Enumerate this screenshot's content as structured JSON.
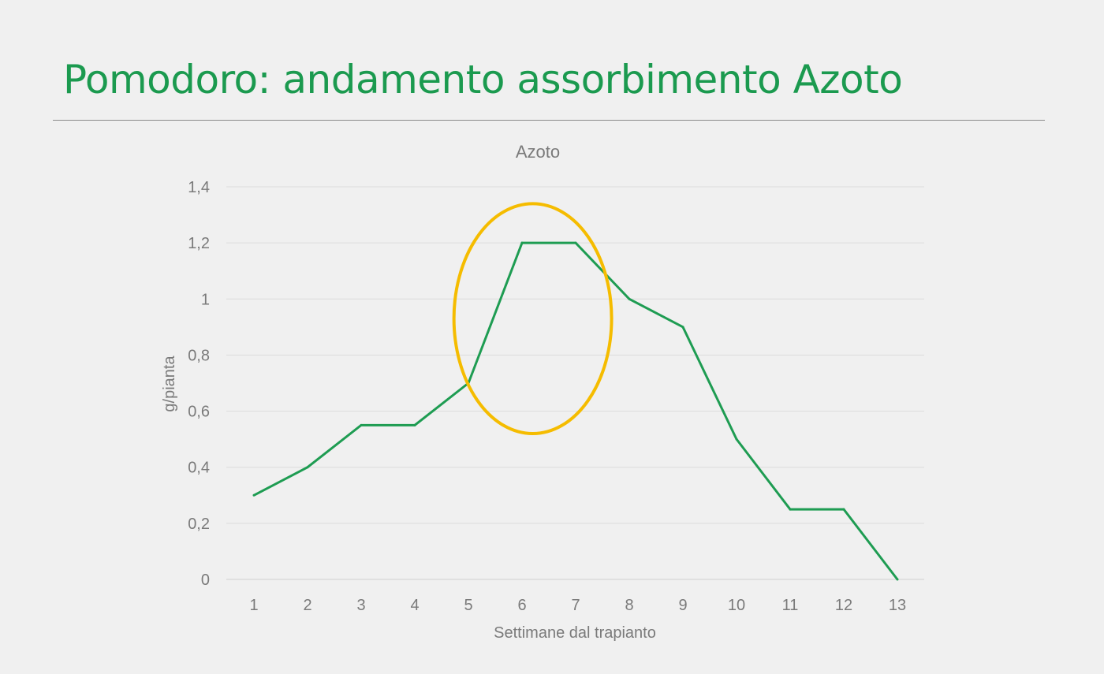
{
  "slide": {
    "title": "Pomodoro: andamento assorbimento Azoto"
  },
  "colors": {
    "title": "#1b9a4f",
    "line": "#1e9c52",
    "highlight": "#f5bc00",
    "grid": "#dcdcdc",
    "text": "#7a7a7a"
  },
  "chart_data": {
    "type": "line",
    "title": "Azoto",
    "xlabel": "Settimane dal trapianto",
    "ylabel": "g/pianta",
    "categories": [
      "1",
      "2",
      "3",
      "4",
      "5",
      "6",
      "7",
      "8",
      "9",
      "10",
      "11",
      "12",
      "13"
    ],
    "series": [
      {
        "values": [
          0.3,
          0.4,
          0.55,
          0.55,
          0.7,
          1.2,
          1.2,
          1.0,
          0.9,
          0.5,
          0.25,
          0.25,
          0
        ]
      }
    ],
    "ylim": [
      0,
      1.4
    ],
    "yticks": [
      "0",
      "0,2",
      "0,4",
      "0,6",
      "0,8",
      "1",
      "1,2",
      "1,4"
    ],
    "grid": true,
    "legend": "none",
    "annotation": {
      "shape": "ellipse",
      "center_x": 6.2,
      "center_y": 0.93,
      "radius_x": 1.47,
      "radius_y": 0.41
    }
  }
}
